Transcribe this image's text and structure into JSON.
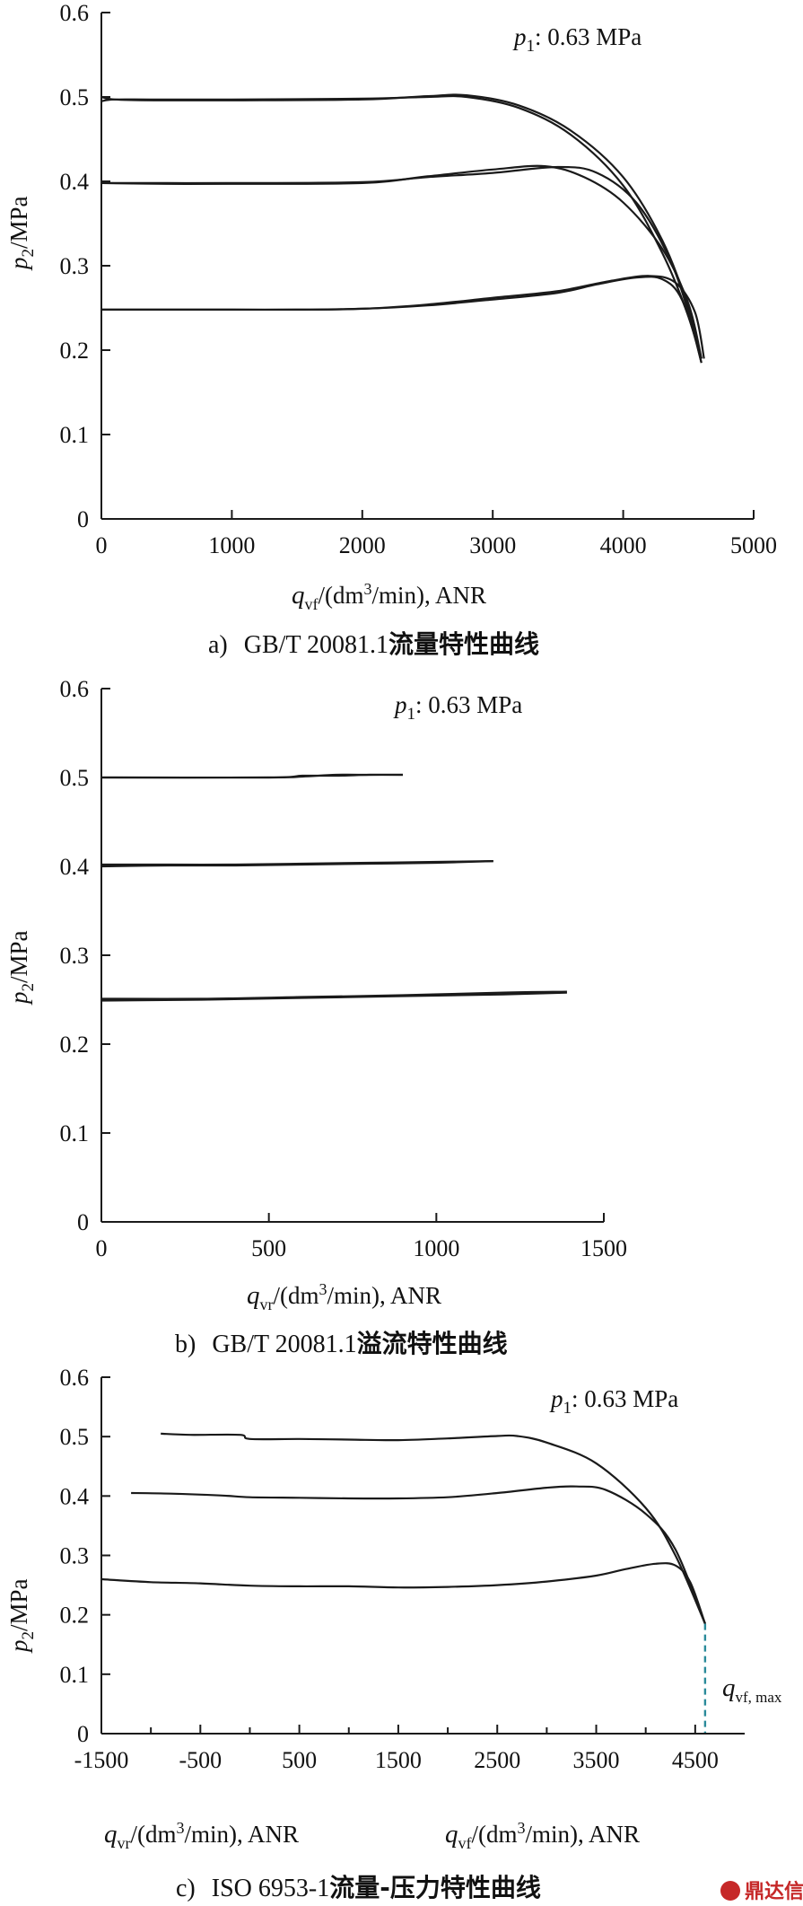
{
  "charts": [
    {
      "id": "a",
      "caption_prefix": "a)",
      "caption_latin": "GB/T 20081.1",
      "caption_cjk": "流量特性曲线",
      "annotation_var": "p",
      "annotation_sub": "1",
      "annotation_rest": ": 0.63 MPa",
      "ylabel_var": "p",
      "ylabel_sub": "2",
      "ylabel_rest": "/MPa",
      "xlabel_var": "q",
      "xlabel_sub": "vf",
      "xlabel_mid": "/(dm",
      "xlabel_sup": "3",
      "xlabel_rest": "/min), ANR"
    },
    {
      "id": "b",
      "caption_prefix": "b)",
      "caption_latin": "GB/T 20081.1",
      "caption_cjk": "溢流特性曲线",
      "annotation_var": "p",
      "annotation_sub": "1",
      "annotation_rest": ": 0.63 MPa",
      "ylabel_var": "p",
      "ylabel_sub": "2",
      "ylabel_rest": "/MPa",
      "xlabel_var": "q",
      "xlabel_sub": "vr",
      "xlabel_mid": "/(dm",
      "xlabel_sup": "3",
      "xlabel_rest": "/min), ANR"
    },
    {
      "id": "c",
      "caption_prefix": "c)",
      "caption_latin": "ISO 6953-1",
      "caption_cjk": "流量-压力特性曲线",
      "annotation_var": "p",
      "annotation_sub": "1",
      "annotation_rest": ": 0.63 MPa",
      "ylabel_var": "p",
      "ylabel_sub": "2",
      "ylabel_rest": "/MPa",
      "xlabel_left_var": "q",
      "xlabel_left_sub": "vr",
      "xlabel_right_var": "q",
      "xlabel_right_sub": "vf",
      "xlabel_mid": "/(dm",
      "xlabel_sup": "3",
      "xlabel_rest": "/min), ANR",
      "max_label_var": "q",
      "max_label_sub": "vf, max"
    }
  ],
  "chart_data": [
    {
      "type": "line",
      "xlim": [
        0,
        5000
      ],
      "ylim": [
        0,
        0.6
      ],
      "xticks": [
        0,
        1000,
        2000,
        3000,
        4000,
        5000
      ],
      "yticks": [
        0,
        0.1,
        0.2,
        0.3,
        0.4,
        0.5,
        0.6
      ],
      "grid": false,
      "series": [
        {
          "x": [
            0,
            100,
            400,
            1000,
            2000,
            2500,
            2800,
            3200,
            3600,
            4000,
            4300,
            4500,
            4600
          ],
          "y": [
            0.5,
            0.497,
            0.496,
            0.496,
            0.497,
            0.501,
            0.502,
            0.49,
            0.46,
            0.405,
            0.33,
            0.25,
            0.19
          ]
        },
        {
          "x": [
            0,
            100,
            400,
            1000,
            2000,
            2500,
            2800,
            3200,
            3600,
            4000,
            4300,
            4500,
            4600
          ],
          "y": [
            0.495,
            0.497,
            0.497,
            0.497,
            0.498,
            0.5,
            0.5,
            0.487,
            0.455,
            0.395,
            0.315,
            0.24,
            0.185
          ]
        },
        {
          "x": [
            0,
            500,
            1000,
            2000,
            2500,
            3000,
            3400,
            3700,
            4000,
            4300,
            4500,
            4600
          ],
          "y": [
            0.398,
            0.397,
            0.397,
            0.398,
            0.406,
            0.414,
            0.418,
            0.405,
            0.375,
            0.32,
            0.255,
            0.19
          ]
        },
        {
          "x": [
            0,
            500,
            1000,
            2000,
            2500,
            3000,
            3500,
            3800,
            4100,
            4350,
            4500,
            4600
          ],
          "y": [
            0.398,
            0.398,
            0.398,
            0.399,
            0.405,
            0.41,
            0.417,
            0.41,
            0.375,
            0.31,
            0.245,
            0.185
          ]
        },
        {
          "x": [
            0,
            500,
            1000,
            1500,
            2000,
            2500,
            3000,
            3500,
            3800,
            4100,
            4300,
            4450,
            4600
          ],
          "y": [
            0.248,
            0.248,
            0.248,
            0.248,
            0.249,
            0.253,
            0.26,
            0.268,
            0.278,
            0.286,
            0.284,
            0.26,
            0.19
          ]
        },
        {
          "x": [
            0,
            500,
            1000,
            1500,
            2000,
            2500,
            3000,
            3500,
            3900,
            4200,
            4400,
            4550,
            4620
          ],
          "y": [
            0.248,
            0.248,
            0.248,
            0.248,
            0.249,
            0.254,
            0.262,
            0.27,
            0.282,
            0.288,
            0.28,
            0.245,
            0.19
          ]
        }
      ]
    },
    {
      "type": "line",
      "xlim": [
        0,
        1500
      ],
      "ylim": [
        0,
        0.6
      ],
      "xticks": [
        0,
        500,
        1000,
        1500
      ],
      "yticks": [
        0,
        0.1,
        0.2,
        0.3,
        0.4,
        0.5,
        0.6
      ],
      "grid": false,
      "series": [
        {
          "x": [
            0,
            500,
            600,
            700,
            800,
            900
          ],
          "y": [
            0.5,
            0.5,
            0.502,
            0.502,
            0.503,
            0.503
          ]
        },
        {
          "x": [
            0,
            500,
            600,
            700,
            800,
            900
          ],
          "y": [
            0.5,
            0.5,
            0.501,
            0.503,
            0.503,
            0.503
          ]
        },
        {
          "x": [
            0,
            200,
            400,
            600,
            800,
            1000,
            1170
          ],
          "y": [
            0.4,
            0.401,
            0.401,
            0.402,
            0.403,
            0.404,
            0.406
          ]
        },
        {
          "x": [
            0,
            200,
            400,
            600,
            800,
            1000,
            1170
          ],
          "y": [
            0.402,
            0.402,
            0.402,
            0.403,
            0.404,
            0.405,
            0.406
          ]
        },
        {
          "x": [
            0,
            300,
            600,
            900,
            1200,
            1390
          ],
          "y": [
            0.249,
            0.25,
            0.252,
            0.254,
            0.256,
            0.258
          ]
        },
        {
          "x": [
            0,
            300,
            600,
            900,
            1200,
            1390
          ],
          "y": [
            0.251,
            0.251,
            0.253,
            0.255,
            0.258,
            0.259
          ]
        }
      ]
    },
    {
      "type": "line",
      "xlim": [
        -1500,
        5000
      ],
      "ylim": [
        0,
        0.6
      ],
      "xticks": [
        -1500,
        -500,
        500,
        1500,
        2500,
        3500,
        4500
      ],
      "yticks": [
        0,
        0.1,
        0.2,
        0.3,
        0.4,
        0.5,
        0.6
      ],
      "grid": false,
      "series": [
        {
          "x": [
            -900,
            -600,
            -100,
            0,
            500,
            1000,
            1500,
            2000,
            2500,
            2700,
            3000,
            3500,
            4000,
            4300,
            4600
          ],
          "y": [
            0.505,
            0.503,
            0.503,
            0.496,
            0.496,
            0.495,
            0.494,
            0.497,
            0.501,
            0.501,
            0.49,
            0.455,
            0.38,
            0.3,
            0.185
          ]
        },
        {
          "x": [
            -1200,
            -800,
            -300,
            0,
            500,
            1000,
            1500,
            2000,
            2500,
            3000,
            3300,
            3600,
            4000,
            4300,
            4600
          ],
          "y": [
            0.405,
            0.404,
            0.401,
            0.398,
            0.397,
            0.396,
            0.396,
            0.398,
            0.405,
            0.414,
            0.416,
            0.41,
            0.37,
            0.31,
            0.185
          ]
        },
        {
          "x": [
            -1500,
            -1000,
            -500,
            0,
            500,
            1000,
            1500,
            2000,
            2500,
            3000,
            3500,
            3800,
            4100,
            4300,
            4450,
            4600
          ],
          "y": [
            0.26,
            0.255,
            0.253,
            0.249,
            0.248,
            0.248,
            0.246,
            0.247,
            0.25,
            0.256,
            0.266,
            0.277,
            0.286,
            0.283,
            0.255,
            0.185
          ]
        }
      ],
      "annotations": [
        {
          "type": "dashed_vline",
          "x": 4600,
          "y_from": 0,
          "y_to": 0.185,
          "color": "#2a8a9a"
        }
      ]
    }
  ],
  "watermark": {
    "text": "鼎达信",
    "color": "#c62828"
  }
}
